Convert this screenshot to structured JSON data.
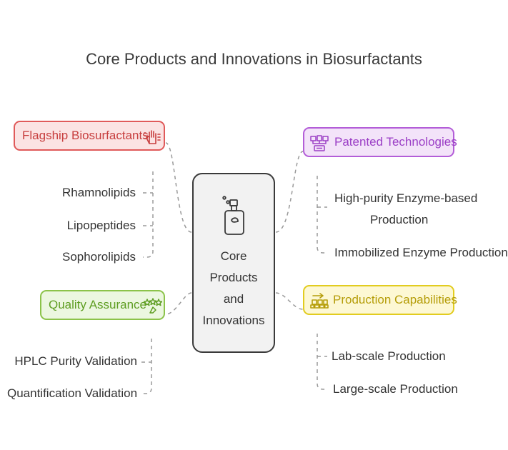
{
  "title": "Core Products and Innovations in Biosurfactants",
  "center": {
    "lines": [
      "Core",
      "Products",
      "and",
      "Innovations"
    ]
  },
  "branches": {
    "flagship": {
      "label": "Flagship Biosurfactants",
      "color": "#e05a5a",
      "items": [
        "Rhamnolipids",
        "Lipopeptides",
        "Sophorolipids"
      ]
    },
    "patented": {
      "label": "Patented Technologies",
      "color": "#b35dd8",
      "items": [
        "High-purity Enzyme-based",
        "Production",
        "Immobilized Enzyme Production"
      ]
    },
    "quality": {
      "label": "Quality Assurance",
      "color": "#8cc34a",
      "items": [
        "HPLC Purity Validation",
        "Quantification Validation"
      ]
    },
    "production": {
      "label": "Production Capabilities",
      "color": "#e2cc1f",
      "items": [
        "Lab-scale Production",
        "Large-scale Production"
      ]
    }
  },
  "icons": {
    "center": "spray-bottle-icon",
    "flagship": "hand-icon",
    "patented": "network-icon",
    "quality": "stars-icon",
    "production": "conveyor-icon"
  }
}
